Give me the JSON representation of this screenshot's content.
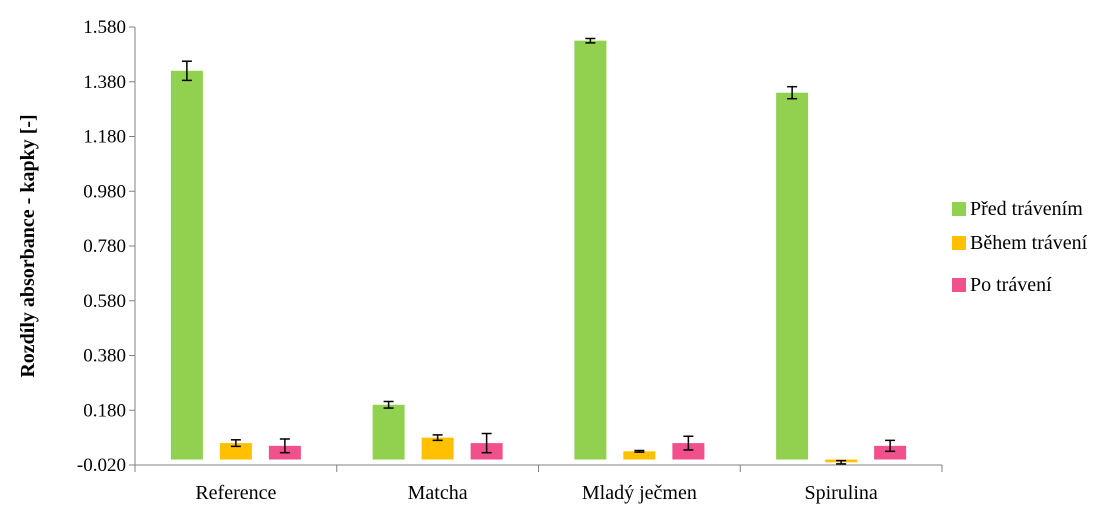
{
  "chart_data": {
    "type": "bar",
    "title": "",
    "xlabel": "",
    "ylabel": "Rozdíly absorbance - kapky [-]",
    "ylim": [
      -0.02,
      1.58
    ],
    "yticks": [
      "-0.020",
      "0.180",
      "0.380",
      "0.580",
      "0.780",
      "0.980",
      "1.180",
      "1.380",
      "1.580"
    ],
    "grid": false,
    "legend_position": "right",
    "categories": [
      "Reference",
      "Matcha",
      "Mladý ječmen",
      "Spirulina"
    ],
    "series": [
      {
        "name": "Před trávením",
        "color": "#92D050",
        "values": [
          1.42,
          0.2,
          1.53,
          1.34
        ],
        "errors": [
          0.035,
          0.012,
          0.008,
          0.022
        ]
      },
      {
        "name": "Během trávení",
        "color": "#FFC000",
        "values": [
          0.06,
          0.08,
          0.03,
          -0.01
        ],
        "errors": [
          0.012,
          0.01,
          0.003,
          0.006
        ]
      },
      {
        "name": "Po trávení",
        "color": "#F0508C",
        "values": [
          0.05,
          0.06,
          0.06,
          0.05
        ],
        "errors": [
          0.025,
          0.035,
          0.025,
          0.02
        ]
      }
    ]
  }
}
